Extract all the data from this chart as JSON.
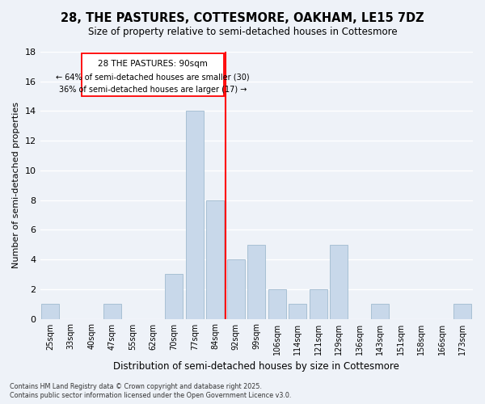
{
  "title": "28, THE PASTURES, COTTESMORE, OAKHAM, LE15 7DZ",
  "subtitle": "Size of property relative to semi-detached houses in Cottesmore",
  "xlabel": "Distribution of semi-detached houses by size in Cottesmore",
  "ylabel": "Number of semi-detached properties",
  "categories": [
    "25sqm",
    "33sqm",
    "40sqm",
    "47sqm",
    "55sqm",
    "62sqm",
    "70sqm",
    "77sqm",
    "84sqm",
    "92sqm",
    "99sqm",
    "106sqm",
    "114sqm",
    "121sqm",
    "129sqm",
    "136sqm",
    "143sqm",
    "151sqm",
    "158sqm",
    "166sqm",
    "173sqm"
  ],
  "values": [
    1,
    0,
    0,
    1,
    0,
    0,
    3,
    14,
    8,
    4,
    5,
    2,
    1,
    2,
    5,
    0,
    1,
    0,
    0,
    0,
    1
  ],
  "bar_color": "#c8d8ea",
  "bar_edgecolor": "#a8c0d4",
  "redline_index": 9,
  "redline_label": "28 THE PASTURES: 90sqm",
  "redline_note1": "← 64% of semi-detached houses are smaller (30)",
  "redline_note2": "36% of semi-detached houses are larger (17) →",
  "ylim": [
    0,
    18
  ],
  "yticks": [
    0,
    2,
    4,
    6,
    8,
    10,
    12,
    14,
    16,
    18
  ],
  "background_color": "#eef2f8",
  "grid_color": "#ffffff",
  "footer1": "Contains HM Land Registry data © Crown copyright and database right 2025.",
  "footer2": "Contains public sector information licensed under the Open Government Licence v3.0."
}
